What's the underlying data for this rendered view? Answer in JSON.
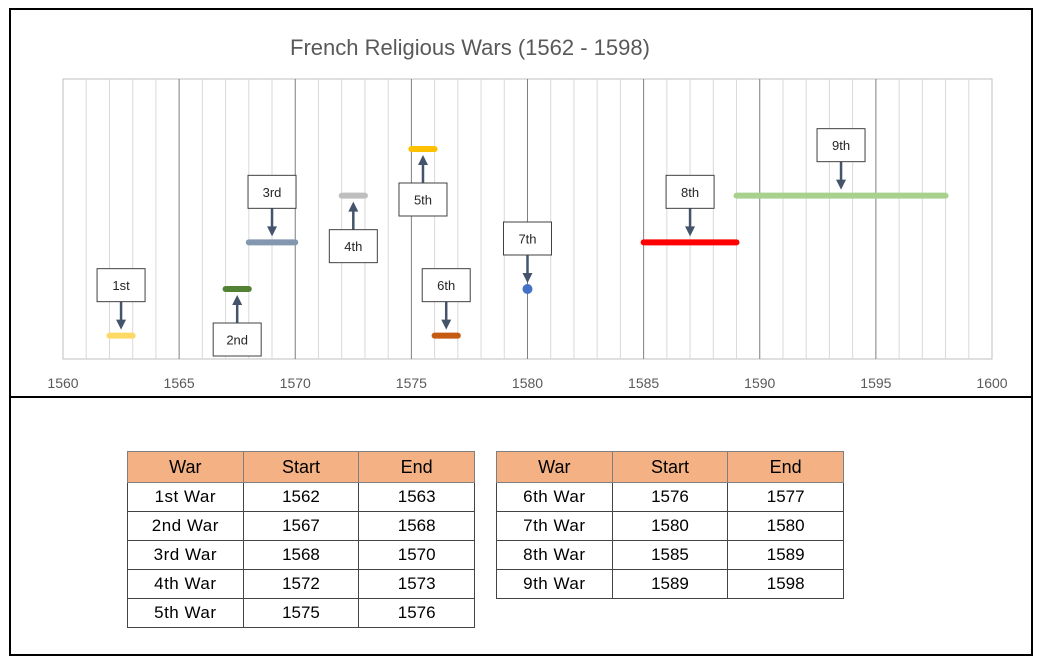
{
  "chart_data": {
    "type": "timeline",
    "title": "French Religious Wars (1562 - 1598)",
    "xlim": [
      1560,
      1600
    ],
    "x_ticks": [
      "1560",
      "1565",
      "1570",
      "1575",
      "1580",
      "1585",
      "1590",
      "1595",
      "1600"
    ],
    "grid": "vertical, major every 5 years, minor every year",
    "series": [
      {
        "label": "1st",
        "start": 1562,
        "end": 1563,
        "level": 1,
        "color": "#ffd966",
        "callout": "above"
      },
      {
        "label": "2nd",
        "start": 1567,
        "end": 1568,
        "level": 3,
        "color": "#548235",
        "callout": "below"
      },
      {
        "label": "3rd",
        "start": 1568,
        "end": 1570,
        "level": 5,
        "color": "#8497b0",
        "callout": "above"
      },
      {
        "label": "4th",
        "start": 1572,
        "end": 1573,
        "level": 7,
        "color": "#bfbfbf",
        "callout": "below"
      },
      {
        "label": "5th",
        "start": 1575,
        "end": 1576,
        "level": 9,
        "color": "#ffc000",
        "callout": "below"
      },
      {
        "label": "6th",
        "start": 1576,
        "end": 1577,
        "level": 1,
        "color": "#c55a11",
        "callout": "above"
      },
      {
        "label": "7th",
        "start": 1580,
        "end": 1580,
        "level": 3,
        "color": "#4472c4",
        "callout": "above"
      },
      {
        "label": "8th",
        "start": 1585,
        "end": 1589,
        "level": 5,
        "color": "#ff0000",
        "callout": "above"
      },
      {
        "label": "9th",
        "start": 1589,
        "end": 1598,
        "level": 7,
        "color": "#a9d18e",
        "callout": "above"
      }
    ]
  },
  "tables": {
    "headers": [
      "War",
      "Start",
      "End"
    ],
    "left": [
      {
        "war": "1st War",
        "start": "1562",
        "end": "1563"
      },
      {
        "war": "2nd War",
        "start": "1567",
        "end": "1568"
      },
      {
        "war": "3rd War",
        "start": "1568",
        "end": "1570"
      },
      {
        "war": "4th War",
        "start": "1572",
        "end": "1573"
      },
      {
        "war": "5th War",
        "start": "1575",
        "end": "1576"
      }
    ],
    "right": [
      {
        "war": "6th War",
        "start": "1576",
        "end": "1577"
      },
      {
        "war": "7th War",
        "start": "1580",
        "end": "1580"
      },
      {
        "war": "8th War",
        "start": "1585",
        "end": "1589"
      },
      {
        "war": "9th War",
        "start": "1589",
        "end": "1598"
      }
    ]
  }
}
